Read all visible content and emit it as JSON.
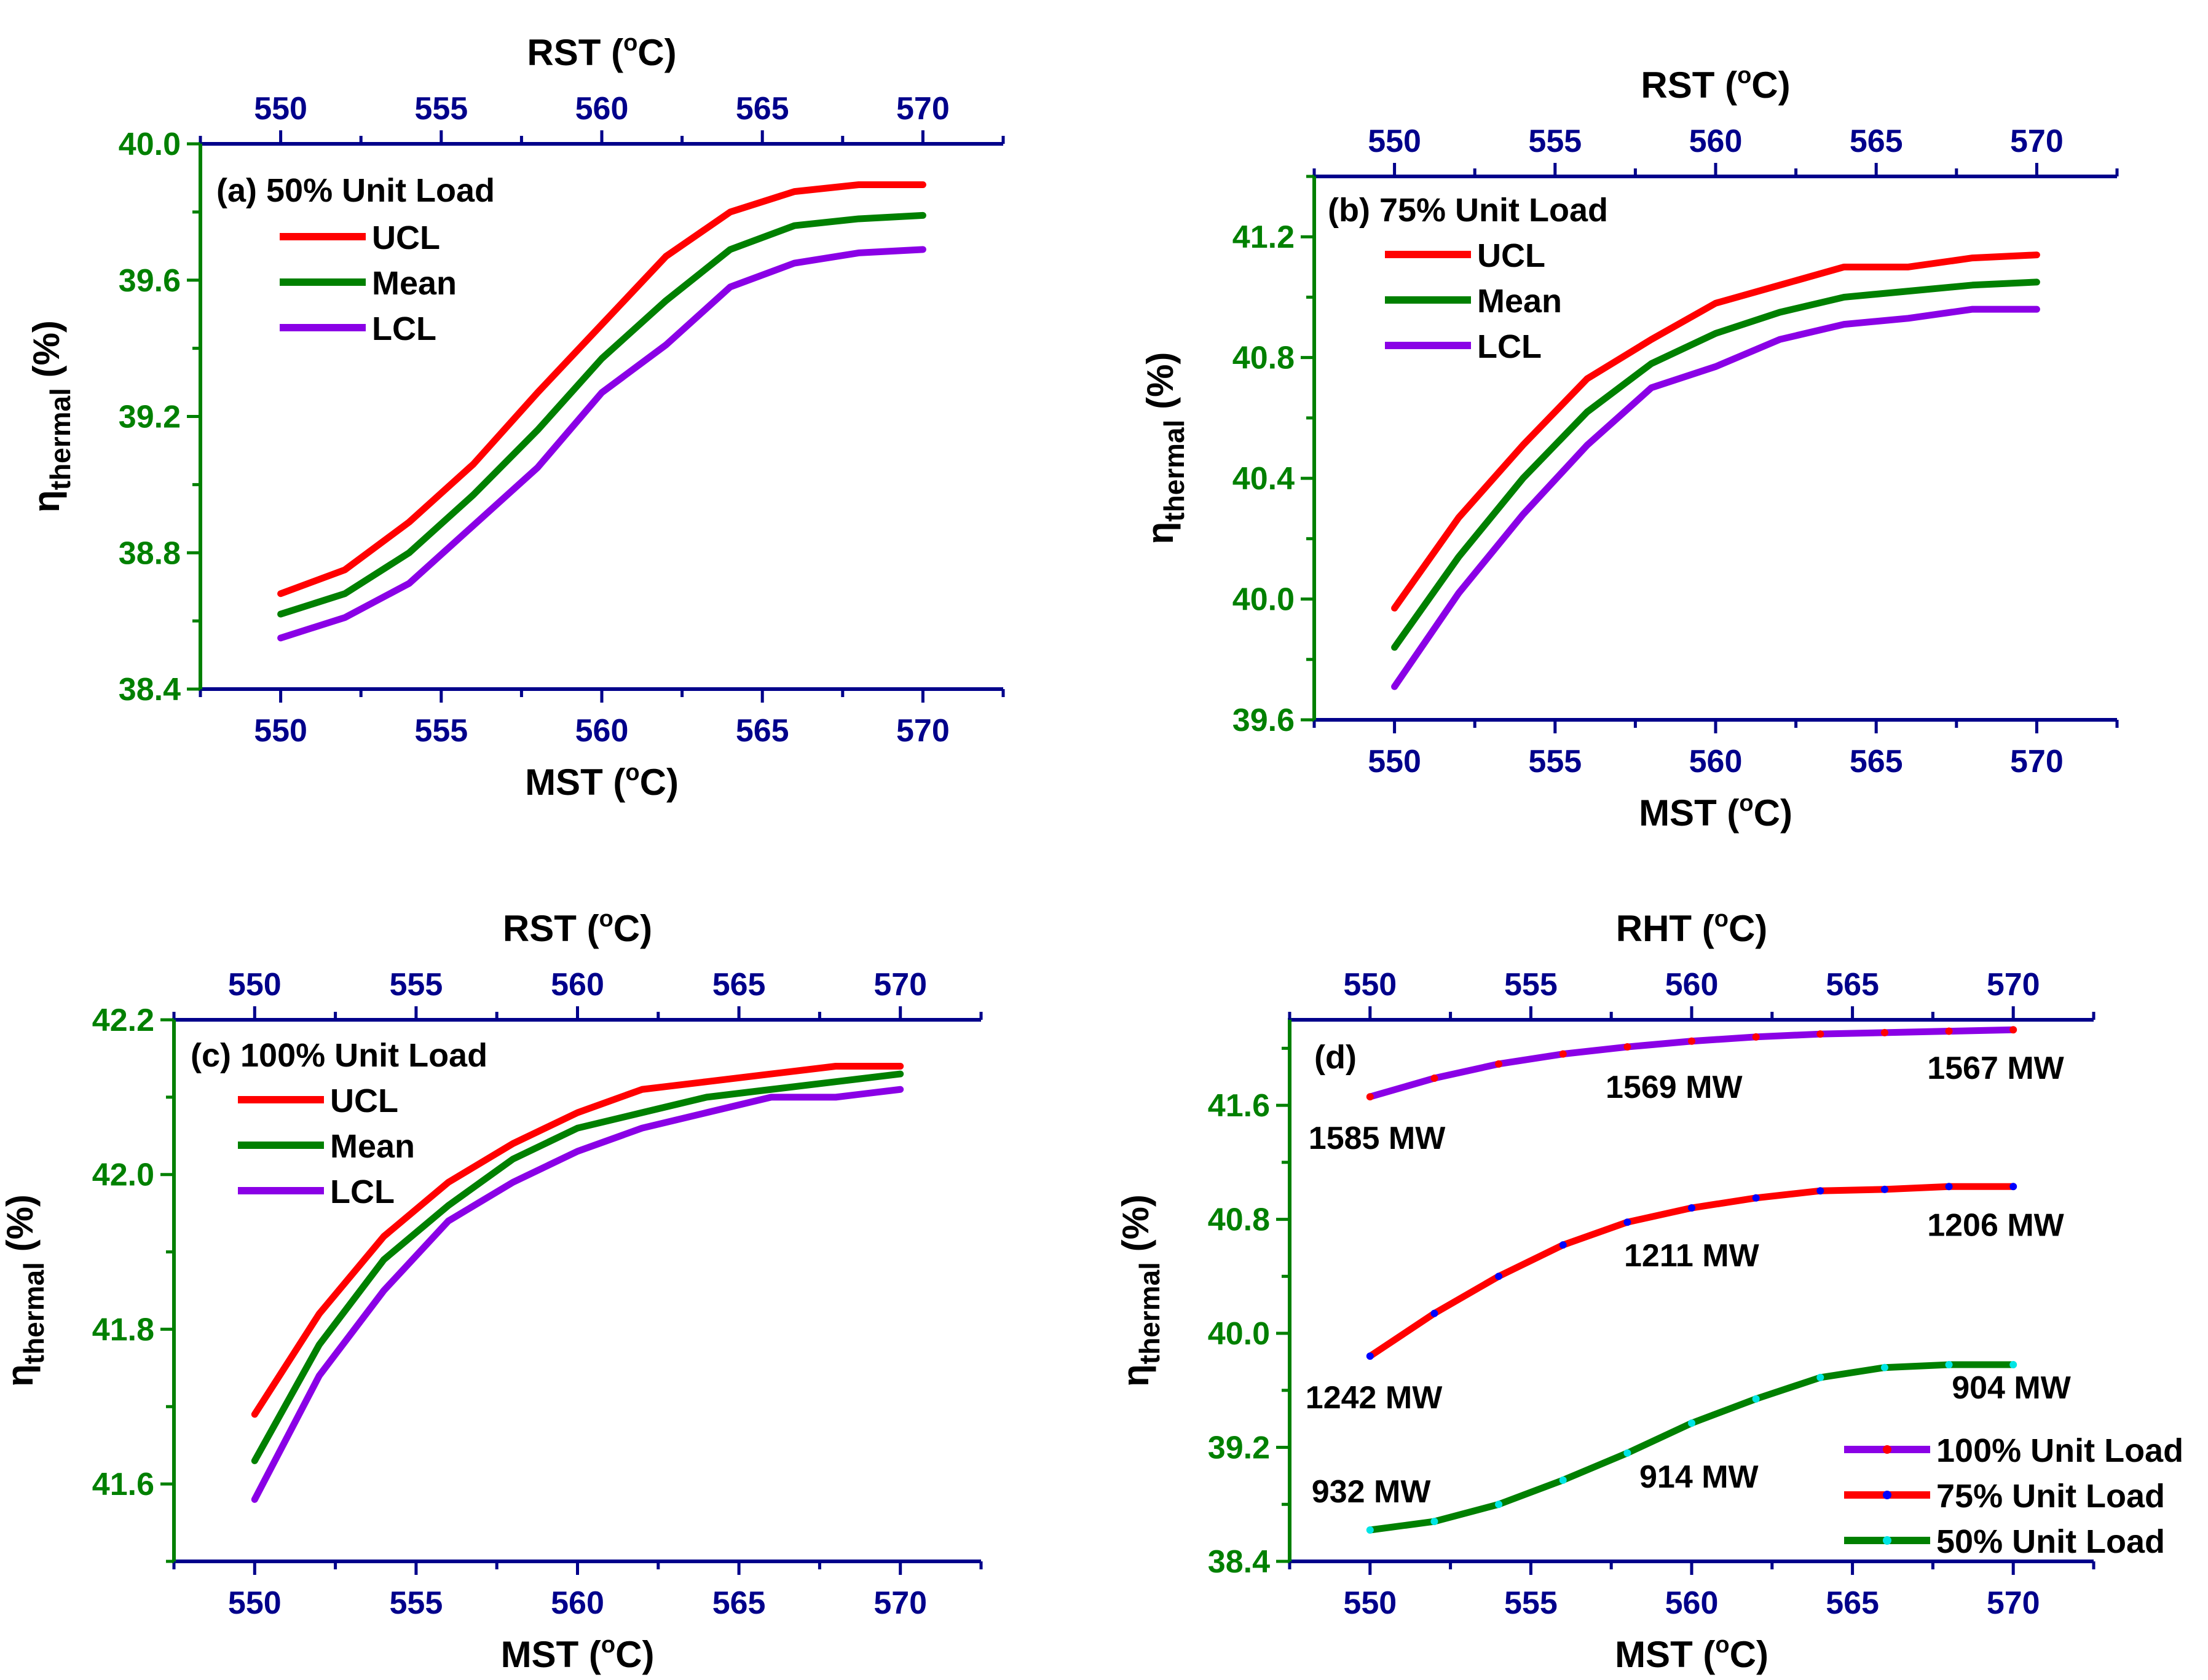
{
  "colors": {
    "left_axis": "#008000",
    "top_bottom_axis": "#00008B",
    "text": "#000000",
    "ucl": "#FF0000",
    "mean": "#008000",
    "lcl": "#8A00E6",
    "marker_100": "#FF0000",
    "marker_75": "#0000FF",
    "marker_50": "#00E5E5"
  },
  "chart_data": [
    {
      "id": "a",
      "type": "line",
      "panel_label": "(a) 50% Unit Load",
      "top_axis_title": "RST (",
      "bottom_axis_title": "MST (",
      "unit_suffix": "C)",
      "degree_mark": "o",
      "y_axis_main": "η",
      "y_axis_sub": "thermal",
      "y_axis_unit": " (%)",
      "xlim": [
        547.5,
        572.5
      ],
      "ylim": [
        38.4,
        40.0
      ],
      "xticks": [
        "550",
        "555",
        "560",
        "565",
        "570"
      ],
      "yticks": [
        "38.4",
        "38.8",
        "39.2",
        "39.6",
        "40.0"
      ],
      "legend": [
        "UCL",
        "Mean",
        "LCL"
      ],
      "x": [
        550,
        552,
        554,
        556,
        558,
        560,
        562,
        564,
        566,
        568,
        570
      ],
      "series": [
        {
          "name": "UCL",
          "values": [
            38.68,
            38.75,
            38.89,
            39.06,
            39.27,
            39.47,
            39.67,
            39.8,
            39.86,
            39.88,
            39.88
          ]
        },
        {
          "name": "Mean",
          "values": [
            38.62,
            38.68,
            38.8,
            38.97,
            39.16,
            39.37,
            39.54,
            39.69,
            39.76,
            39.78,
            39.79
          ]
        },
        {
          "name": "LCL",
          "values": [
            38.55,
            38.61,
            38.71,
            38.88,
            39.05,
            39.27,
            39.41,
            39.58,
            39.65,
            39.68,
            39.69
          ]
        }
      ]
    },
    {
      "id": "b",
      "type": "line",
      "panel_label": "(b) 75% Unit Load",
      "top_axis_title": "RST (",
      "bottom_axis_title": "MST (",
      "unit_suffix": "C)",
      "degree_mark": "o",
      "y_axis_main": "η",
      "y_axis_sub": "thermal",
      "y_axis_unit": " (%)",
      "xlim": [
        547.5,
        572.5
      ],
      "ylim": [
        39.6,
        41.4
      ],
      "xticks": [
        "550",
        "555",
        "560",
        "565",
        "570"
      ],
      "yticks": [
        "39.6",
        "40.0",
        "40.4",
        "40.8",
        "41.2"
      ],
      "legend": [
        "UCL",
        "Mean",
        "LCL"
      ],
      "x": [
        550,
        552,
        554,
        556,
        558,
        560,
        562,
        564,
        566,
        568,
        570
      ],
      "series": [
        {
          "name": "UCL",
          "values": [
            39.97,
            40.27,
            40.51,
            40.73,
            40.86,
            40.98,
            41.04,
            41.1,
            41.1,
            41.13,
            41.14
          ]
        },
        {
          "name": "Mean",
          "values": [
            39.84,
            40.14,
            40.4,
            40.62,
            40.78,
            40.88,
            40.95,
            41.0,
            41.02,
            41.04,
            41.05
          ]
        },
        {
          "name": "LCL",
          "values": [
            39.71,
            40.02,
            40.28,
            40.51,
            40.7,
            40.77,
            40.86,
            40.91,
            40.93,
            40.96,
            40.96
          ]
        }
      ]
    },
    {
      "id": "c",
      "type": "line",
      "panel_label": "(c) 100% Unit Load",
      "top_axis_title": "RST (",
      "bottom_axis_title": "MST (",
      "unit_suffix": "C)",
      "degree_mark": "o",
      "y_axis_main": "η",
      "y_axis_sub": "thermal",
      "y_axis_unit": " (%)",
      "xlim": [
        547.5,
        572.5
      ],
      "ylim": [
        41.5,
        42.2
      ],
      "xticks": [
        "550",
        "555",
        "560",
        "565",
        "570"
      ],
      "yticks": [
        "41.6",
        "41.8",
        "42.0",
        "42.2"
      ],
      "legend": [
        "UCL",
        "Mean",
        "LCL"
      ],
      "x": [
        550,
        552,
        554,
        556,
        558,
        560,
        562,
        564,
        566,
        568,
        570
      ],
      "series": [
        {
          "name": "UCL",
          "values": [
            41.69,
            41.82,
            41.92,
            41.99,
            42.04,
            42.08,
            42.11,
            42.12,
            42.13,
            42.14,
            42.14
          ]
        },
        {
          "name": "Mean",
          "values": [
            41.63,
            41.78,
            41.89,
            41.96,
            42.02,
            42.06,
            42.08,
            42.1,
            42.11,
            42.12,
            42.13
          ]
        },
        {
          "name": "LCL",
          "values": [
            41.58,
            41.74,
            41.85,
            41.94,
            41.99,
            42.03,
            42.06,
            42.08,
            42.1,
            42.1,
            42.11
          ]
        }
      ]
    },
    {
      "id": "d",
      "type": "line",
      "panel_label": "(d)",
      "top_axis_title": "RHT (",
      "bottom_axis_title": "MST (",
      "unit_suffix": "C)",
      "degree_mark": "o",
      "y_axis_main": "η",
      "y_axis_sub": "thermal",
      "y_axis_unit": " (%)",
      "xlim": [
        547.5,
        572.5
      ],
      "ylim": [
        38.4,
        42.2
      ],
      "xticks": [
        "550",
        "555",
        "560",
        "565",
        "570"
      ],
      "yticks": [
        "38.4",
        "39.2",
        "40.0",
        "40.8",
        "41.6"
      ],
      "legend": [
        "100% Unit Load",
        "75% Unit Load",
        "50% Unit Load"
      ],
      "x": [
        550,
        552,
        554,
        556,
        558,
        560,
        562,
        564,
        566,
        568,
        570
      ],
      "series": [
        {
          "name": "100% Unit Load",
          "values": [
            41.66,
            41.79,
            41.89,
            41.96,
            42.01,
            42.05,
            42.08,
            42.1,
            42.11,
            42.12,
            42.13
          ]
        },
        {
          "name": "75% Unit Load",
          "values": [
            39.84,
            40.14,
            40.4,
            40.62,
            40.78,
            40.88,
            40.95,
            41.0,
            41.01,
            41.03,
            41.03
          ]
        },
        {
          "name": "50% Unit Load",
          "values": [
            38.62,
            38.68,
            38.8,
            38.97,
            39.16,
            39.37,
            39.54,
            39.69,
            39.76,
            39.78,
            39.78
          ]
        }
      ],
      "annotations": [
        {
          "text": "1585 MW",
          "series": "100% Unit Load",
          "x": 550
        },
        {
          "text": "1569 MW",
          "series": "100% Unit Load",
          "x": 560
        },
        {
          "text": "1567 MW",
          "series": "100% Unit Load",
          "x": 570
        },
        {
          "text": "1242 MW",
          "series": "75% Unit Load",
          "x": 550
        },
        {
          "text": "1211 MW",
          "series": "75% Unit Load",
          "x": 560
        },
        {
          "text": "1206 MW",
          "series": "75% Unit Load",
          "x": 570
        },
        {
          "text": "932 MW",
          "series": "50% Unit Load",
          "x": 550
        },
        {
          "text": "914 MW",
          "series": "50% Unit Load",
          "x": 560
        },
        {
          "text": "904 MW",
          "series": "50% Unit Load",
          "x": 570
        }
      ]
    }
  ]
}
